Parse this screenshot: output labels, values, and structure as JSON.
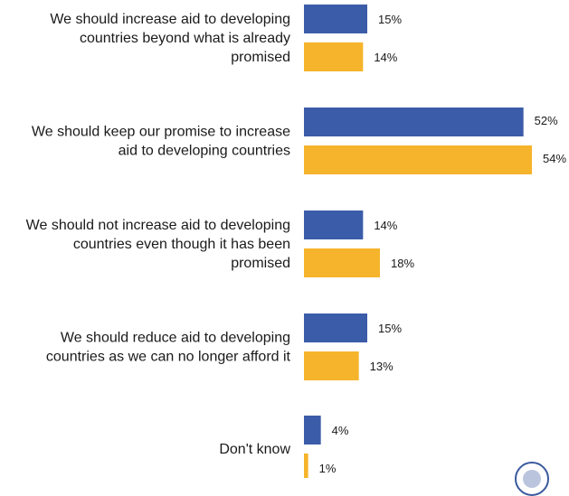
{
  "chart_data": {
    "type": "bar",
    "orientation": "horizontal",
    "categories": [
      [
        "We should increase aid to developing",
        "countries beyond what is already",
        "promised"
      ],
      [
        "We should keep our promise to increase",
        "aid to developing countries"
      ],
      [
        "We should not increase aid to developing",
        "countries even though it has been",
        "promised"
      ],
      [
        "We should reduce aid to developing",
        "countries as we can no longer afford it"
      ],
      [
        "Don't know"
      ]
    ],
    "series": [
      {
        "values": [
          15,
          52,
          14,
          15,
          4
        ],
        "color": "#3b5ca8"
      },
      {
        "values": [
          14,
          54,
          18,
          13,
          1
        ],
        "color": "#f6b42c"
      }
    ],
    "value_suffix": "%",
    "xlim": [
      0,
      54
    ],
    "grid": false,
    "legend": "none"
  }
}
